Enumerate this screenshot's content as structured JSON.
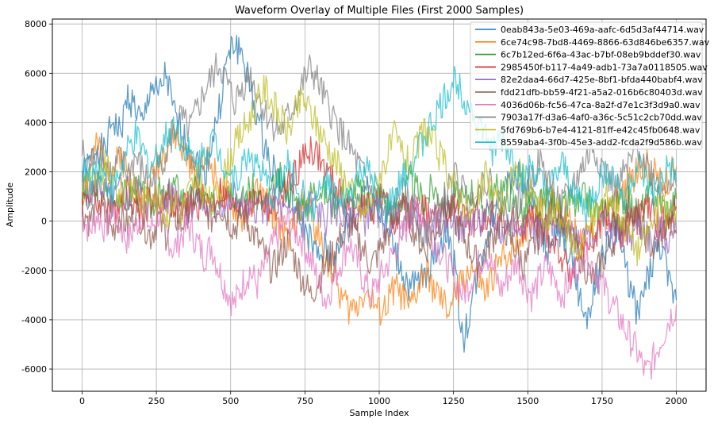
{
  "chart_data": {
    "type": "line",
    "title": "Waveform Overlay of Multiple Files (First 2000 Samples)",
    "xlabel": "Sample Index",
    "ylabel": "Amplitude",
    "xlim": [
      -100,
      2100
    ],
    "ylim": [
      -6900,
      8200
    ],
    "xticks": [
      0,
      250,
      500,
      750,
      1000,
      1250,
      1500,
      1750,
      2000
    ],
    "yticks": [
      -6000,
      -4000,
      -2000,
      0,
      2000,
      4000,
      6000,
      8000
    ],
    "grid": true,
    "legend_position": "top-right",
    "series": [
      {
        "name": "0eab843a-5e03-469a-aafc-6d5d3af44714.wav",
        "color": "#1f77b4",
        "values": [
          1800,
          2300,
          3100,
          2700,
          4200,
          3500,
          5100,
          4600,
          3800,
          5600,
          5000,
          6000,
          4400,
          3600,
          3000,
          2400,
          1800,
          3200,
          4500,
          6500,
          7200,
          6800,
          5400,
          4200,
          3000,
          2200,
          1600,
          1000,
          400,
          -200,
          -800,
          -1600,
          -1100,
          -1900,
          -1000,
          0,
          800,
          1400,
          1000,
          400,
          -300,
          -1200,
          -2000,
          -2800,
          -2600,
          -2200,
          -1500,
          -900,
          -400,
          -2000,
          -5000,
          -3500,
          -2000,
          -800,
          200,
          900,
          1400,
          2000,
          1600,
          800,
          0,
          -1200,
          -800,
          -600,
          -1400,
          -2600,
          -4000,
          -3000,
          -2000,
          -800,
          0,
          -1400,
          -2800,
          -3800,
          -2600,
          -1600,
          -1000,
          -2600,
          -3200
        ]
      },
      {
        "name": "6ce74c98-7bd8-4469-8866-63d846be6357.wav",
        "color": "#ff7f0e",
        "values": [
          1000,
          2200,
          3000,
          2600,
          1800,
          2800,
          2000,
          1400,
          900,
          1600,
          2400,
          3000,
          3500,
          3000,
          2400,
          1800,
          2800,
          2200,
          1600,
          1000,
          500,
          0,
          600,
          1200,
          800,
          400,
          -200,
          -800,
          0,
          800,
          400,
          -600,
          -1400,
          -2200,
          -3000,
          -3600,
          -3400,
          -2800,
          -3200,
          -3800,
          -3400,
          -2600,
          -3000,
          -3600,
          -2800,
          -2000,
          -2600,
          -3200,
          -3600,
          -3000,
          -2400,
          -1800,
          -2400,
          -3000,
          -2200,
          -1600,
          -1200,
          -800,
          -400,
          0,
          600,
          1200,
          800,
          400,
          0,
          -400,
          -800,
          -400,
          0,
          400,
          800,
          1200,
          1600,
          2000,
          2400,
          2000,
          1600,
          1800,
          2200
        ]
      },
      {
        "name": "6c7b12ed-6f6a-43ac-b7bf-08eb9bddef30.wav",
        "color": "#2ca02c",
        "values": [
          1200,
          800,
          1500,
          1100,
          600,
          1300,
          900,
          1400,
          1000,
          600,
          1200,
          800,
          1500,
          1100,
          700,
          1300,
          900,
          500,
          1100,
          1600,
          1200,
          800,
          1400,
          1000,
          600,
          1200,
          1700,
          1300,
          900,
          500,
          1100,
          1500,
          1100,
          700,
          1300,
          900,
          1400,
          1000,
          600,
          1200,
          800,
          400,
          1000,
          1600,
          1200,
          800,
          1400,
          1000,
          500,
          1100,
          700,
          1300,
          900,
          500,
          1100,
          1500,
          1100,
          700,
          300,
          900,
          500,
          1100,
          700,
          300,
          900,
          500,
          1000,
          600,
          200,
          800,
          400,
          1000,
          600,
          200,
          800,
          1200,
          800,
          400,
          900
        ]
      },
      {
        "name": "2985450f-b117-4a49-adb1-73a7a0118505.wav",
        "color": "#d62728",
        "values": [
          800,
          1200,
          600,
          1000,
          400,
          900,
          1300,
          700,
          300,
          900,
          500,
          1100,
          700,
          300,
          800,
          400,
          1000,
          600,
          1200,
          800,
          400,
          900,
          500,
          1100,
          700,
          300,
          900,
          1400,
          1900,
          2500,
          3000,
          2600,
          2000,
          1500,
          1000,
          600,
          200,
          700,
          300,
          900,
          500,
          100,
          600,
          200,
          800,
          400,
          0,
          500,
          100,
          600,
          200,
          -200,
          300,
          -100,
          400,
          0,
          -400,
          100,
          -300,
          200,
          -200,
          -600,
          -1000,
          -1500,
          -2200,
          -1600,
          -1000,
          -600,
          -200,
          200,
          -200,
          -600,
          -200,
          200,
          600,
          200,
          -200,
          200,
          600
        ]
      },
      {
        "name": "82e2daa4-66d7-425e-8bf1-bfda440babf4.wav",
        "color": "#9467bd",
        "values": [
          1500,
          1000,
          1700,
          1200,
          700,
          1300,
          800,
          1400,
          900,
          500,
          1100,
          700,
          1300,
          800,
          400,
          1000,
          600,
          200,
          800,
          400,
          1000,
          600,
          200,
          700,
          300,
          900,
          500,
          100,
          600,
          200,
          800,
          400,
          0,
          600,
          200,
          -200,
          400,
          0,
          600,
          200,
          -200,
          300,
          -100,
          500,
          100,
          -300,
          200,
          -200,
          400,
          0,
          -400,
          100,
          -300,
          300,
          -100,
          -500,
          0,
          -400,
          200,
          -200,
          -600,
          -100,
          -500,
          100,
          -300,
          -700,
          -200,
          -600,
          0,
          -400,
          -800,
          -300,
          -700,
          -100,
          -500,
          -900,
          -400,
          -800,
          -500
        ]
      },
      {
        "name": "fdd21dfb-bb59-4f21-a5a2-016b6c80403d.wav",
        "color": "#8c564b",
        "values": [
          500,
          0,
          700,
          200,
          -400,
          300,
          -200,
          500,
          0,
          -600,
          100,
          -500,
          300,
          -200,
          500,
          1000,
          600,
          100,
          700,
          200,
          -300,
          300,
          -200,
          -800,
          -1400,
          -2000,
          -1400,
          -800,
          -1600,
          -2400,
          -3000,
          -2400,
          -1800,
          -1200,
          -600,
          0,
          -600,
          -1200,
          -1800,
          -1200,
          -600,
          0,
          600,
          0,
          -600,
          -1200,
          -600,
          0,
          600,
          0,
          -600,
          -1200,
          -1800,
          -1200,
          -600,
          0,
          -600,
          -1200,
          -1800,
          -1200,
          -600,
          0,
          600,
          0,
          -600,
          -1200,
          -1800,
          -2400,
          -1800,
          -1200,
          -600,
          0,
          600,
          0,
          -600,
          -1200,
          -600,
          0,
          -500
        ]
      },
      {
        "name": "4036d06b-fc56-47ca-8a2f-d7e1c3f3d9a0.wav",
        "color": "#e377c2",
        "values": [
          200,
          -400,
          300,
          -300,
          500,
          -200,
          -800,
          -200,
          400,
          -300,
          300,
          -400,
          -1200,
          -600,
          -200,
          -800,
          -1400,
          -1000,
          -2000,
          -2800,
          -3400,
          -2600,
          -2000,
          -2600,
          -1800,
          -1000,
          -400,
          0,
          -400,
          -800,
          -1600,
          -2400,
          -3200,
          -2400,
          -1600,
          -800,
          -1600,
          -2400,
          -3000,
          -2400,
          -1800,
          -1200,
          -600,
          0,
          600,
          0,
          -600,
          -1200,
          -1800,
          -2400,
          -3000,
          -2400,
          -1800,
          -1200,
          -2000,
          -2800,
          -2200,
          -1600,
          -2400,
          -3000,
          -2400,
          -1800,
          -2400,
          -3000,
          -2400,
          -1800,
          -1200,
          -1800,
          -2400,
          -3000,
          -3600,
          -4200,
          -4800,
          -5400,
          -6200,
          -5600,
          -4800,
          -4000,
          -3400
        ]
      },
      {
        "name": "7903a17f-d3a6-4af0-a36c-5c51c2cb70dd.wav",
        "color": "#7f7f7f",
        "values": [
          2800,
          2200,
          3000,
          2400,
          1800,
          2500,
          1900,
          2600,
          2000,
          1400,
          2100,
          2800,
          3500,
          4200,
          3600,
          4400,
          5200,
          5800,
          6400,
          5600,
          4800,
          5400,
          6000,
          5200,
          4400,
          4000,
          3600,
          4200,
          4800,
          5600,
          6200,
          5600,
          4800,
          4200,
          3600,
          3000,
          2400,
          1800,
          1200,
          600,
          0,
          600,
          1200,
          600,
          0,
          -600,
          0,
          600,
          1200,
          1800,
          1200,
          600,
          1200,
          1800,
          1200,
          600,
          0,
          600,
          1200,
          1800,
          2400,
          1800,
          1200,
          600,
          1200,
          1800,
          2400,
          3000,
          2400,
          1800,
          1200,
          1800,
          2400,
          3000,
          2400,
          1800,
          1200,
          1800,
          1400
        ]
      },
      {
        "name": "5fd769b6-b7e4-4121-81ff-e42c45fb0648.wav",
        "color": "#bcbd22",
        "values": [
          1500,
          2000,
          1400,
          2200,
          1600,
          1000,
          1800,
          1200,
          600,
          1400,
          800,
          200,
          1000,
          400,
          1200,
          1800,
          1200,
          600,
          1400,
          2200,
          3000,
          3600,
          4200,
          4800,
          5400,
          4800,
          4200,
          3600,
          4400,
          5000,
          4400,
          3800,
          3200,
          2600,
          2000,
          1400,
          800,
          200,
          1000,
          1800,
          2600,
          3400,
          2800,
          2200,
          3000,
          3800,
          3200,
          2600,
          2000,
          1400,
          800,
          200,
          1000,
          1800,
          1200,
          600,
          1400,
          2200,
          1600,
          1000,
          400,
          -200,
          600,
          0,
          -600,
          -1200,
          -600,
          0,
          600,
          1200,
          600,
          0,
          -600,
          -1200,
          -600,
          0,
          600,
          200,
          400
        ]
      },
      {
        "name": "8559aba4-3f0b-45e3-add2-fcda2f9d586b.wav",
        "color": "#17becf",
        "values": [
          2200,
          1600,
          2400,
          1800,
          1200,
          2000,
          2800,
          3400,
          2800,
          2200,
          2800,
          3400,
          4000,
          3400,
          2800,
          2200,
          2800,
          3400,
          2800,
          2200,
          1600,
          2200,
          2800,
          2200,
          1600,
          1000,
          1600,
          2200,
          1600,
          1000,
          400,
          1000,
          1600,
          1000,
          400,
          1000,
          1600,
          2200,
          1600,
          1000,
          400,
          1000,
          1600,
          2200,
          2800,
          3400,
          4000,
          4600,
          5200,
          5800,
          5200,
          4600,
          4000,
          3400,
          2800,
          3400,
          2800,
          2200,
          1600,
          2200,
          1600,
          1000,
          1600,
          2200,
          1600,
          1000,
          400,
          1000,
          1600,
          2200,
          1600,
          1000,
          1600,
          2200,
          1600,
          1000,
          1600,
          2200,
          1600
        ]
      }
    ]
  }
}
